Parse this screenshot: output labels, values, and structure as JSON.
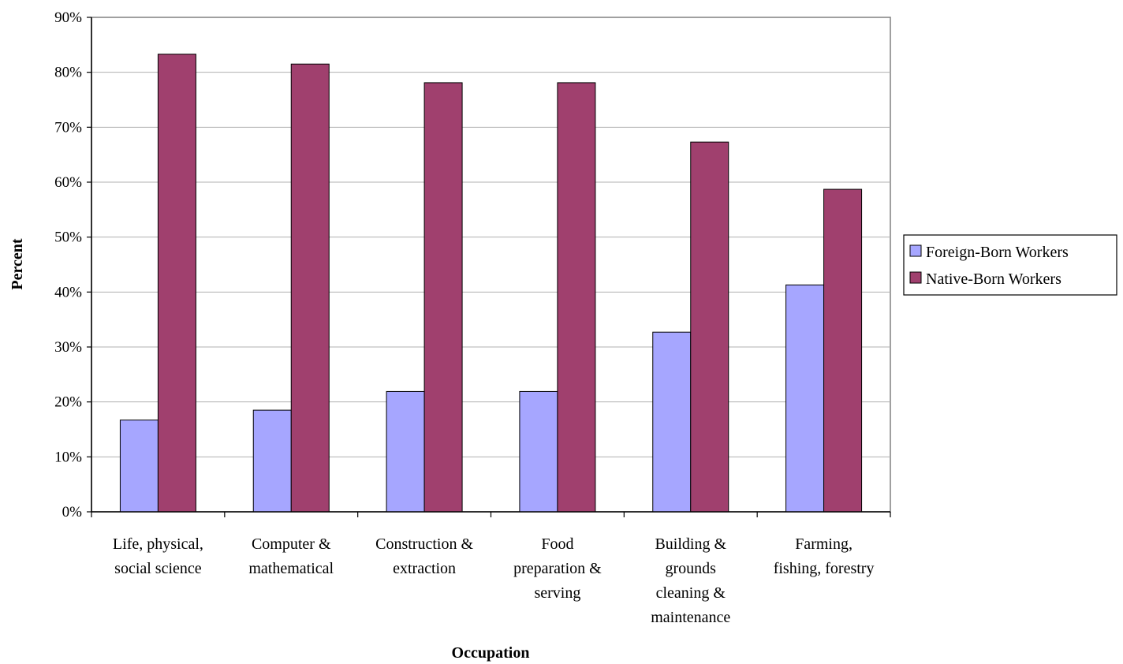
{
  "chart_data": {
    "type": "bar",
    "xlabel": "Occupation",
    "ylabel": "Percent",
    "ylim": [
      0,
      90
    ],
    "yticks": [
      "0%",
      "10%",
      "20%",
      "30%",
      "40%",
      "50%",
      "60%",
      "70%",
      "80%",
      "90%"
    ],
    "grid": true,
    "legend_position": "right",
    "categories": [
      [
        "Life, physical,",
        "social science"
      ],
      [
        "Computer &",
        "mathematical"
      ],
      [
        "Construction &",
        "extraction"
      ],
      [
        "Food",
        "preparation &",
        "serving"
      ],
      [
        "Building &",
        "grounds",
        "cleaning &",
        "maintenance"
      ],
      [
        "Farming,",
        "fishing, forestry"
      ]
    ],
    "series": [
      {
        "name": "Foreign-Born Workers",
        "color": "#a6a6ff",
        "values": [
          16.7,
          18.5,
          21.9,
          21.9,
          32.7,
          41.3
        ]
      },
      {
        "name": "Native-Born Workers",
        "color": "#a0406e",
        "values": [
          83.3,
          81.5,
          78.1,
          78.1,
          67.3,
          58.7
        ]
      }
    ]
  }
}
